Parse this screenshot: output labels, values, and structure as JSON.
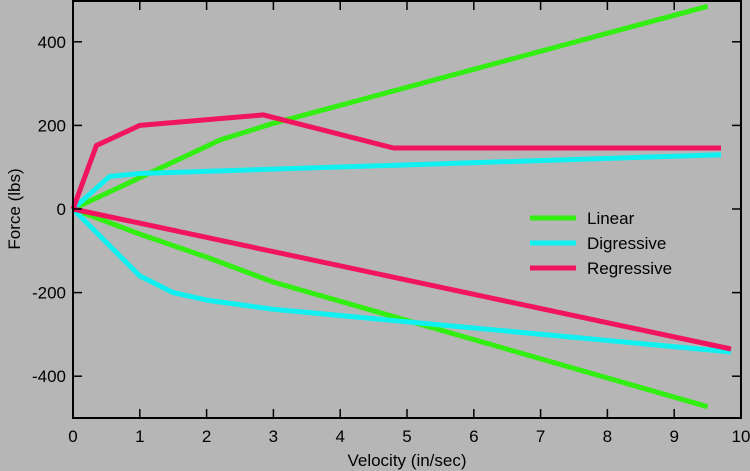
{
  "chart_data": {
    "type": "line",
    "title": "",
    "xlabel": "Velocity (in/sec)",
    "ylabel": "Force (lbs)",
    "xlim": [
      0,
      10
    ],
    "ylim": [
      -500,
      500
    ],
    "x_ticks": [
      0,
      1,
      2,
      3,
      4,
      5,
      6,
      7,
      8,
      9,
      10
    ],
    "x_tick_labels": [
      "0",
      "1",
      "2",
      "3",
      "4",
      "5",
      "6",
      "7",
      "8",
      "9",
      "10"
    ],
    "y_ticks": [
      -400,
      -200,
      0,
      200,
      400
    ],
    "y_tick_labels": [
      "-400",
      "-200",
      "0",
      "200",
      "400"
    ],
    "grid": false,
    "legend_position": "right",
    "background": "#b6b6b6",
    "series": [
      {
        "name": "Linear",
        "color": "#33ee11",
        "points": [
          [
            0,
            0
          ],
          [
            1,
            75
          ],
          [
            2.2,
            165
          ],
          [
            3,
            205
          ],
          [
            9.5,
            485
          ]
        ]
      },
      {
        "name": "Linear",
        "legend": false,
        "color": "#33ee11",
        "points": [
          [
            0,
            0
          ],
          [
            1,
            -60
          ],
          [
            2,
            -115
          ],
          [
            3,
            -175
          ],
          [
            9.5,
            -473
          ]
        ]
      },
      {
        "name": "Digressive",
        "color": "#11f0f0",
        "points": [
          [
            0,
            0
          ],
          [
            0.55,
            78
          ],
          [
            1,
            85
          ],
          [
            9.7,
            130
          ]
        ]
      },
      {
        "name": "Digressive",
        "legend": false,
        "color": "#11f0f0",
        "points": [
          [
            0,
            0
          ],
          [
            1,
            -160
          ],
          [
            1.5,
            -200
          ],
          [
            2,
            -218
          ],
          [
            3,
            -240
          ],
          [
            9.85,
            -342
          ]
        ]
      },
      {
        "name": "Regressive",
        "color": "#f0155e",
        "points": [
          [
            0,
            0
          ],
          [
            0.35,
            152
          ],
          [
            1,
            200
          ],
          [
            2.85,
            225
          ],
          [
            4.8,
            146
          ],
          [
            9.7,
            146
          ]
        ]
      },
      {
        "name": "Regressive",
        "legend": false,
        "color": "#f0155e",
        "points": [
          [
            0,
            0
          ],
          [
            9.85,
            -335
          ]
        ]
      }
    ]
  }
}
